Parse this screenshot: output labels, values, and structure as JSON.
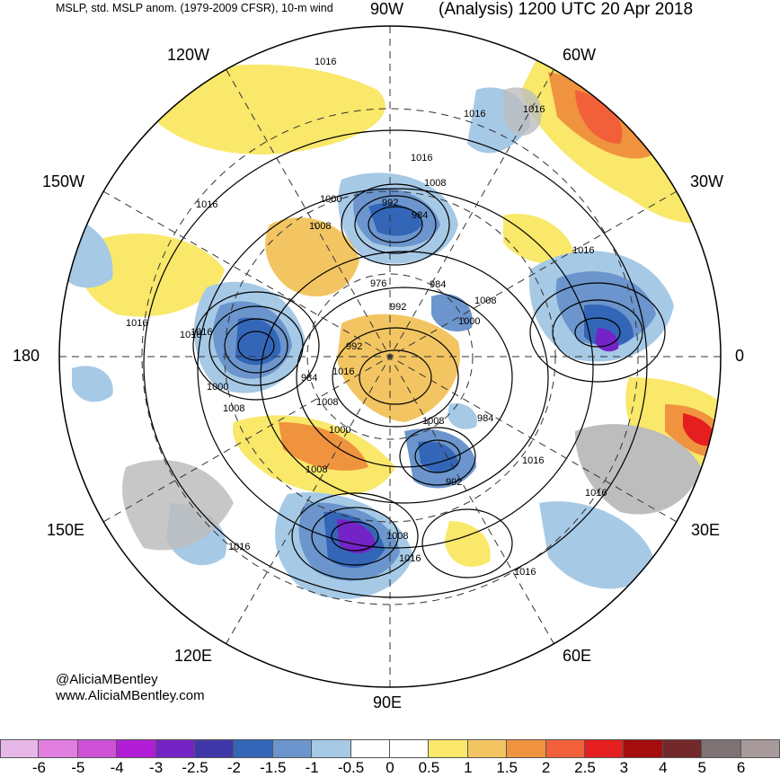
{
  "header": {
    "left_title": "MSLP, std. MSLP anom. (1979-2009 CFSR), 10-m wind",
    "right_title": "(Analysis) 1200 UTC 20 Apr 2018"
  },
  "longitude_labels": {
    "lon_90w": "90W",
    "lon_120w": "120W",
    "lon_60w": "60W",
    "lon_150w": "150W",
    "lon_30w": "30W",
    "lon_180": "180",
    "lon_0": "0",
    "lon_150e": "150E",
    "lon_30e": "30E",
    "lon_120e": "120E",
    "lon_60e": "60E",
    "lon_90e": "90E"
  },
  "isobar_labels": [
    "1016",
    "1016",
    "1016",
    "1016",
    "1008",
    "992",
    "984",
    "1000",
    "1016",
    "1008",
    "976",
    "984",
    "992",
    "1000",
    "1008",
    "1016",
    "1016",
    "992",
    "1000",
    "1008",
    "984",
    "1016",
    "1008",
    "1008",
    "1000",
    "1008",
    "984",
    "1016",
    "992",
    "1016",
    "1016",
    "1008",
    "1016",
    "1016",
    "1016",
    "1016"
  ],
  "credits": {
    "handle": "@AliciaMBentley",
    "website": "www.AliciaMBentley.com"
  },
  "colorbar": {
    "colors": [
      "#e7b8e7",
      "#e17fe0",
      "#cf52d6",
      "#b11ed6",
      "#7424c6",
      "#3f37a8",
      "#3466b8",
      "#6b95cc",
      "#a6c9e6",
      "#ffffff",
      "#ffffff",
      "#f9e86a",
      "#f3c562",
      "#f0933f",
      "#f2603a",
      "#e51f1f",
      "#a30d0d",
      "#73282a",
      "#7d7374",
      "#a89a9b"
    ],
    "ticks": [
      "-6",
      "-5",
      "-4",
      "-3",
      "-2.5",
      "-2",
      "-1.5",
      "-1",
      "-0.5",
      "0",
      "0.5",
      "1",
      "1.5",
      "2",
      "2.5",
      "3",
      "4",
      "5",
      "6"
    ]
  }
}
